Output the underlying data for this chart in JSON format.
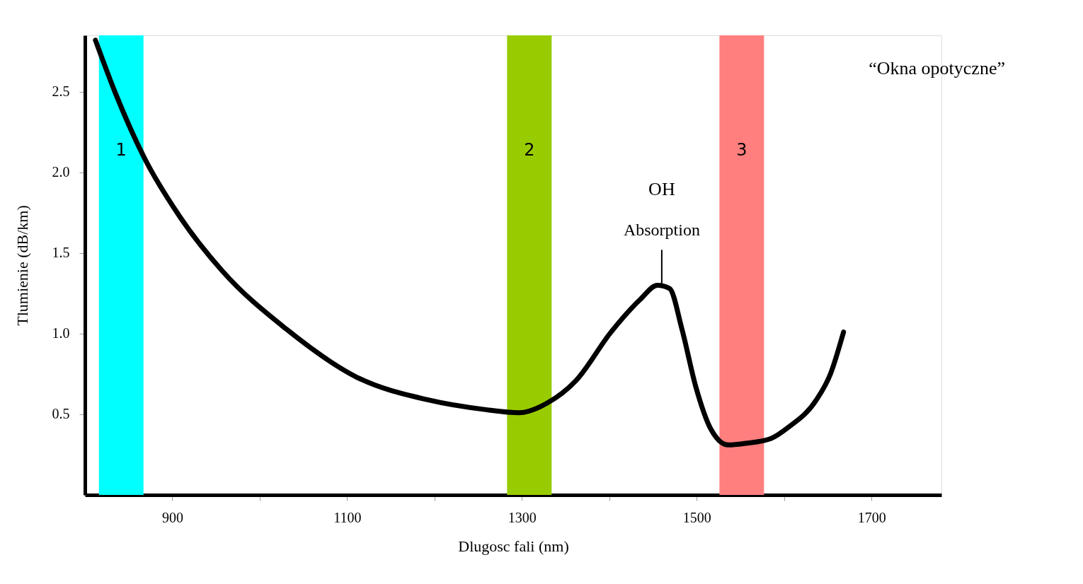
{
  "chart_data": {
    "type": "line",
    "title": "“Okna opotyczne”",
    "xlabel": "Dlugosc fali (nm)",
    "ylabel": "Tlumienie (dB/km)",
    "x": [
      812,
      835,
      868,
      908,
      957,
      1030,
      1111,
      1192,
      1257,
      1297,
      1329,
      1362,
      1402,
      1435,
      1455,
      1469,
      1483,
      1499,
      1516,
      1536,
      1556,
      1585,
      1605,
      1637,
      1653,
      1668
    ],
    "series": [
      {
        "color": "#000000",
        "values": [
          2.82,
          2.49,
          2.09,
          1.73,
          1.39,
          1.03,
          0.73,
          0.59,
          0.53,
          0.51,
          0.57,
          0.71,
          1.01,
          1.21,
          1.3,
          1.28,
          1.03,
          0.67,
          0.41,
          0.31,
          0.32,
          0.35,
          0.42,
          0.59,
          0.75,
          1.01
        ]
      }
    ],
    "xlim": [
      800,
      1780
    ],
    "ylim": [
      0,
      2.85
    ],
    "xticks": [
      900,
      {
        "value": 1000,
        "label": null
      },
      1100,
      {
        "value": 1200,
        "label": null
      },
      1300,
      {
        "value": 1400,
        "label": null
      },
      1500,
      {
        "value": 1600,
        "label": null
      },
      1700
    ],
    "yticks": [
      0.5,
      {
        "value": 1,
        "label": "1.0"
      },
      1.5,
      {
        "value": 2,
        "label": "2.0"
      },
      2.5
    ],
    "bands": [
      {
        "axis": "x",
        "from": 816,
        "to": 867,
        "label": "1",
        "color": "#00ffff"
      },
      {
        "axis": "x",
        "from": 1283,
        "to": 1334,
        "label": "2",
        "color": "#99cc00"
      },
      {
        "axis": "x",
        "from": 1526,
        "to": 1577,
        "label": "3",
        "color": "#ff7f7f"
      }
    ],
    "annotations": [
      {
        "text": "OH Absorption",
        "x": 1460,
        "y": 1.3
      }
    ],
    "grid": false,
    "marker": "none",
    "line_style": "solid"
  }
}
